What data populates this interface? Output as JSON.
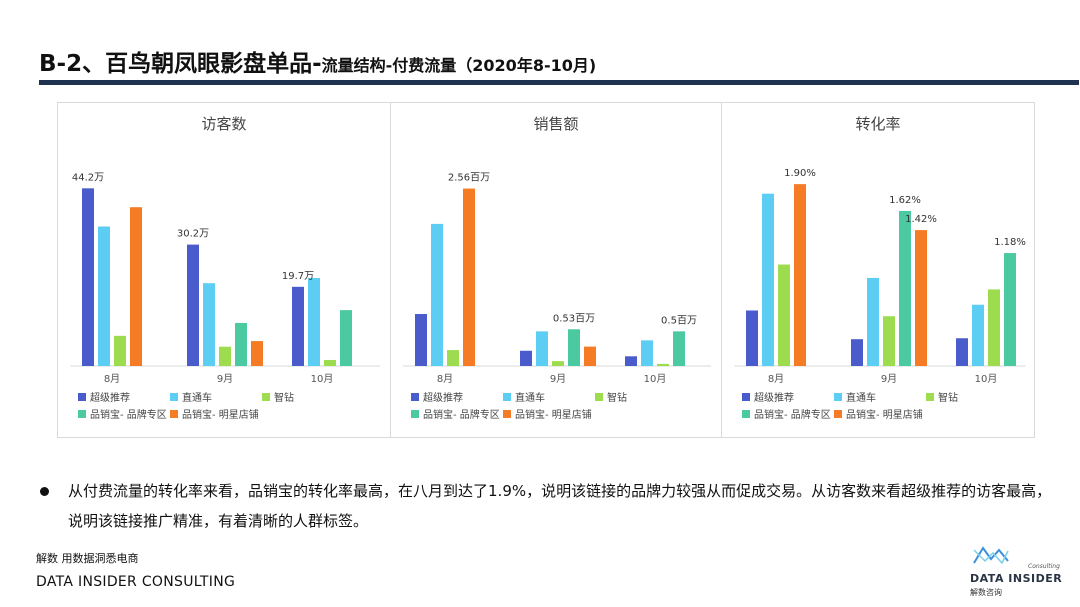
{
  "header": {
    "title_main": "B-2、百鸟朝凤眼影盘单品-",
    "title_sub": "流量结构-付费流量（2020年8-10月)"
  },
  "colors": [
    "#4a5ccc",
    "#5ccdf3",
    "#9ddc4f",
    "#4bc9a0",
    "#f57b25"
  ],
  "legend": [
    "超级推荐",
    "直通车",
    "智钻",
    "品销宝- 品牌专区",
    "品销宝- 明星店铺"
  ],
  "chart_data": [
    {
      "type": "bar",
      "title": "访客数",
      "categories": [
        "8月",
        "9月",
        "10月"
      ],
      "unit": "万",
      "series": [
        {
          "name": "超级推荐",
          "values": [
            44.2,
            30.2,
            19.7
          ]
        },
        {
          "name": "直通车",
          "values": [
            34.7,
            20.6,
            21.9
          ]
        },
        {
          "name": "智钻",
          "values": [
            7.5,
            4.8,
            1.5
          ]
        },
        {
          "name": "品销宝- 品牌专区",
          "values": [
            null,
            10.7,
            13.9
          ]
        },
        {
          "name": "品销宝- 明星店铺",
          "values": [
            39.5,
            6.2,
            null
          ]
        }
      ],
      "data_labels": [
        {
          "series": 0,
          "index": 0,
          "text": "44.2万"
        },
        {
          "series": 0,
          "index": 1,
          "text": "30.2万"
        },
        {
          "series": 0,
          "index": 2,
          "text": "19.7万"
        }
      ],
      "ylim": [
        0,
        50
      ]
    },
    {
      "type": "bar",
      "title": "销售额",
      "categories": [
        "8月",
        "9月",
        "10月"
      ],
      "unit": "百万",
      "series": [
        {
          "name": "超级推荐",
          "values": [
            0.75,
            0.22,
            0.14
          ]
        },
        {
          "name": "直通车",
          "values": [
            2.05,
            0.5,
            0.37
          ]
        },
        {
          "name": "智钻",
          "values": [
            0.23,
            0.07,
            0.03
          ]
        },
        {
          "name": "品销宝- 品牌专区",
          "values": [
            null,
            0.53,
            0.5
          ]
        },
        {
          "name": "品销宝- 明星店铺",
          "values": [
            2.56,
            0.28,
            null
          ]
        }
      ],
      "data_labels": [
        {
          "series": 4,
          "index": 0,
          "text": "2.56百万"
        },
        {
          "series": 3,
          "index": 1,
          "text": "0.53百万"
        },
        {
          "series": 3,
          "index": 2,
          "text": "0.5百万"
        }
      ],
      "ylim": [
        0,
        2.9
      ]
    },
    {
      "type": "bar",
      "title": "转化率",
      "categories": [
        "8月",
        "9月",
        "10月"
      ],
      "unit": "%",
      "series": [
        {
          "name": "超级推荐",
          "values": [
            0.58,
            0.28,
            0.29
          ]
        },
        {
          "name": "直通车",
          "values": [
            1.8,
            0.92,
            0.64
          ]
        },
        {
          "name": "智钻",
          "values": [
            1.06,
            0.52,
            0.8
          ]
        },
        {
          "name": "品销宝- 品牌专区",
          "values": [
            null,
            1.62,
            1.18
          ]
        },
        {
          "name": "品销宝- 明星店铺",
          "values": [
            1.9,
            1.42,
            null
          ]
        }
      ],
      "data_labels": [
        {
          "series": 4,
          "index": 0,
          "text": "1.90%"
        },
        {
          "series": 3,
          "index": 1,
          "text": "1.62%"
        },
        {
          "series": 4,
          "index": 1,
          "text": "1.42%"
        },
        {
          "series": 3,
          "index": 2,
          "text": "1.18%"
        }
      ],
      "ylim": [
        0,
        2.1
      ]
    }
  ],
  "bullet_text": "从付费流量的转化率来看，品销宝的转化率最高，在八月到达了1.9%，说明该链接的品牌力较强从而促成交易。从访客数来看超级推荐的访客最高，说明该链接推广精准，有着清晰的人群标签。",
  "footer": {
    "cn": "解数 用数据洞悉电商",
    "en": "DATA INSIDER CONSULTING"
  },
  "logo": {
    "consulting": "Consulting",
    "en": "DATA INSIDER",
    "cn": "解数咨询"
  }
}
